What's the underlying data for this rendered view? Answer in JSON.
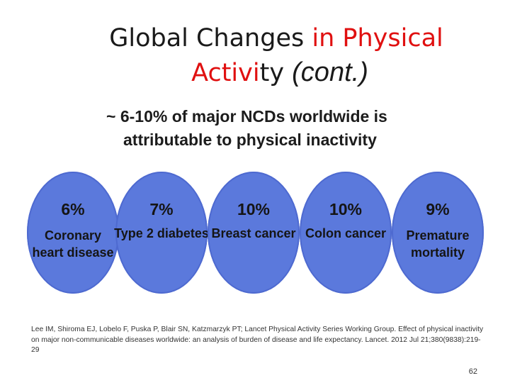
{
  "slide": {
    "title_part1": "Global Changes ",
    "title_part2": "in Physical",
    "title_part3": "Activi",
    "title_part4": "ty ",
    "title_part5": "(cont.)",
    "subtitle_line1": "~ 6-10% of major NCDs worldwide is",
    "subtitle_line2": "attributable to physical inactivity",
    "stats": [
      {
        "percent": "6%",
        "label_line1": "Coronary",
        "label_line2": "heart disease"
      },
      {
        "percent": "7%",
        "label_line1": "Type 2 diabetes",
        "label_line2": ""
      },
      {
        "percent": "10%",
        "label_line1": "Breast cancer",
        "label_line2": ""
      },
      {
        "percent": "10%",
        "label_line1": "Colon cancer",
        "label_line2": ""
      },
      {
        "percent": "9%",
        "label_line1": "Premature",
        "label_line2": "mortality"
      }
    ],
    "citation": "Lee IM, Shiroma EJ, Lobelo F, Puska P, Blair SN, Katzmarzyk PT; Lancet Physical Activity Series Working Group. Effect of physical inactivity on major non-communicable diseases worldwide: an analysis of burden of disease and life expectancy. Lancet. 2012 Jul 21;380(9838):219-29",
    "page_number": "62"
  },
  "colors": {
    "accent_red": "#e01010",
    "circle_fill": "#5b79dc"
  }
}
